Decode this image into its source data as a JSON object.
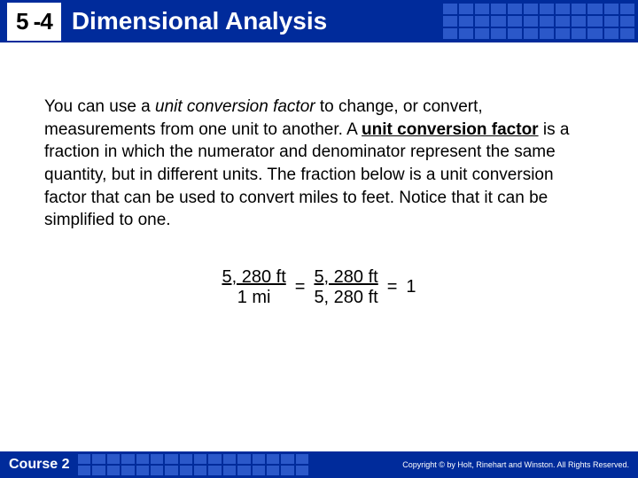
{
  "header": {
    "lesson_number": "5 -4",
    "title": "Dimensional Analysis",
    "bg_color": "#002b9b",
    "grid_color": "#2b58c9"
  },
  "body": {
    "text_before_italic": "You can use a ",
    "italic_phrase": "unit conversion factor",
    "text_mid1": " to change, or convert, measurements from one unit to another. A ",
    "bold_phrase": "unit conversion factor",
    "text_after": " is a fraction in which the numerator and denominator represent the same quantity, but in different units. The fraction below is a unit conversion factor that can be used to convert miles to feet. Notice that it can be simplified to one.",
    "font_size": 19
  },
  "equation": {
    "frac1_num": "5, 280 ft",
    "frac1_den": "1 mi",
    "eq1": "=",
    "frac2_num": "5, 280 ft",
    "frac2_den": "5, 280 ft",
    "eq2": "=",
    "result": "1"
  },
  "footer": {
    "course": "Course 2",
    "copyright": "Copyright © by Holt, Rinehart and Winston. All Rights Reserved."
  }
}
